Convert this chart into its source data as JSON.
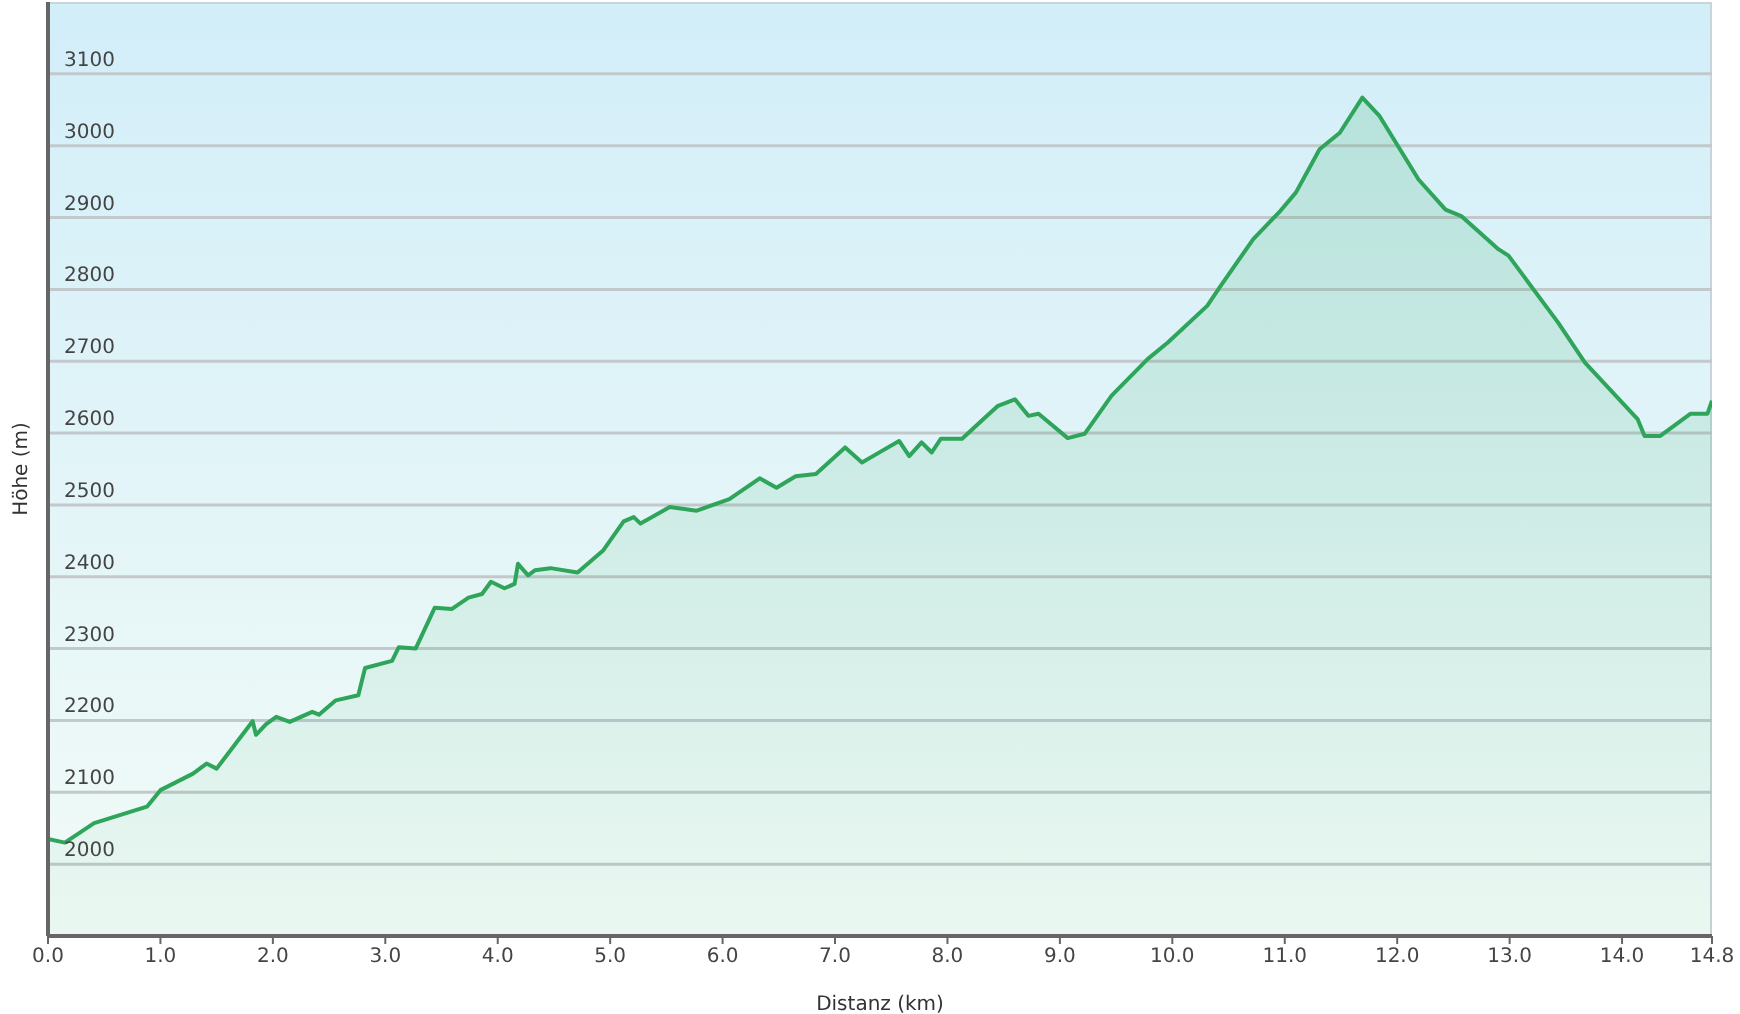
{
  "chart_data": {
    "type": "area",
    "xlabel": "Distanz  (km)",
    "ylabel": "Höhe (m)",
    "xlim": [
      0,
      14.8
    ],
    "ylim": [
      1900,
      3200
    ],
    "xticks": [
      {
        "value": 0,
        "label": "0.0"
      },
      {
        "value": 1,
        "label": "1.0"
      },
      {
        "value": 2,
        "label": "2.0"
      },
      {
        "value": 3,
        "label": "3.0"
      },
      {
        "value": 4,
        "label": "4.0"
      },
      {
        "value": 5,
        "label": "5.0"
      },
      {
        "value": 6,
        "label": "6.0"
      },
      {
        "value": 7,
        "label": "7.0"
      },
      {
        "value": 8,
        "label": "8.0"
      },
      {
        "value": 9,
        "label": "9.0"
      },
      {
        "value": 10,
        "label": "10.0"
      },
      {
        "value": 11,
        "label": "11.0"
      },
      {
        "value": 12,
        "label": "12.0"
      },
      {
        "value": 13,
        "label": "13.0"
      },
      {
        "value": 14,
        "label": "14.0"
      },
      {
        "value": 14.8,
        "label": "14.8"
      }
    ],
    "yticks": [
      2000,
      2100,
      2200,
      2300,
      2400,
      2500,
      2600,
      2700,
      2800,
      2900,
      3000,
      3100
    ],
    "grid": "y",
    "marker": "none",
    "line_style": "solid",
    "series": [
      {
        "color": "#2ea55a",
        "x": [
          0,
          0.15,
          0.41,
          0.88,
          1.0,
          1.29,
          1.41,
          1.5,
          1.82,
          1.85,
          1.94,
          2.03,
          2.15,
          2.35,
          2.41,
          2.56,
          2.76,
          2.82,
          3.06,
          3.12,
          3.27,
          3.44,
          3.59,
          3.74,
          3.86,
          3.94,
          4.06,
          4.15,
          4.18,
          4.27,
          4.33,
          4.47,
          4.71,
          4.94,
          5.12,
          5.21,
          5.27,
          5.53,
          5.77,
          6.06,
          6.33,
          6.48,
          6.65,
          6.83,
          7.09,
          7.24,
          7.36,
          7.57,
          7.66,
          7.77,
          7.86,
          7.94,
          8.13,
          8.33,
          8.45,
          8.6,
          8.72,
          8.81,
          9.07,
          9.22,
          9.46,
          9.78,
          9.96,
          10.31,
          10.43,
          10.72,
          10.96,
          11.1,
          11.31,
          11.49,
          11.69,
          11.84,
          12.19,
          12.43,
          12.57,
          12.9,
          12.99,
          13.43,
          13.67,
          14.14,
          14.2,
          14.34,
          14.61,
          14.76,
          14.8
        ],
        "values": [
          2035,
          2030,
          2057,
          2080,
          2103,
          2126,
          2140,
          2133,
          2199,
          2180,
          2195,
          2205,
          2198,
          2212,
          2208,
          2228,
          2235,
          2273,
          2283,
          2302,
          2300,
          2357,
          2355,
          2371,
          2376,
          2393,
          2384,
          2390,
          2418,
          2402,
          2409,
          2412,
          2406,
          2437,
          2477,
          2483,
          2474,
          2497,
          2492,
          2508,
          2537,
          2524,
          2540,
          2543,
          2580,
          2559,
          2570,
          2589,
          2568,
          2587,
          2573,
          2592,
          2592,
          2621,
          2638,
          2647,
          2624,
          2627,
          2593,
          2599,
          2652,
          2703,
          2726,
          2777,
          2805,
          2870,
          2909,
          2935,
          2995,
          3018,
          3067,
          3042,
          2953,
          2911,
          2902,
          2856,
          2847,
          2754,
          2698,
          2619,
          2596,
          2596,
          2627,
          2627,
          2645
        ]
      }
    ]
  }
}
